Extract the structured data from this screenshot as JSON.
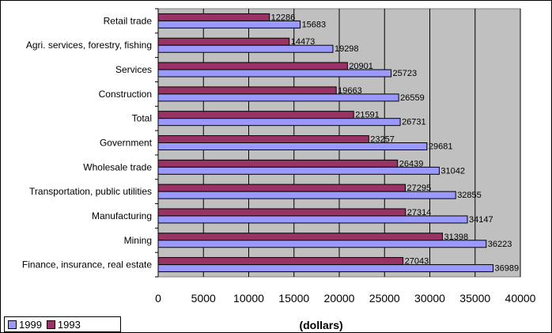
{
  "chart_data": {
    "type": "bar",
    "orientation": "horizontal",
    "categories": [
      "Retail trade",
      "Agri. services, forestry, fishing",
      "Services",
      "Construction",
      "Total",
      "Government",
      "Wholesale trade",
      "Transportation, public utilities",
      "Manufacturing",
      "Mining",
      "Finance, insurance, real estate"
    ],
    "series": [
      {
        "name": "1993",
        "color": "#993366",
        "values": [
          12286,
          14473,
          20901,
          19663,
          21591,
          23257,
          26439,
          27295,
          27314,
          31398,
          27043
        ]
      },
      {
        "name": "1999",
        "color": "#9999ff",
        "values": [
          15683,
          19298,
          25723,
          26559,
          26731,
          29681,
          31042,
          32855,
          34147,
          36223,
          36989
        ]
      }
    ],
    "xlabel": "(dollars)",
    "xlim": [
      0,
      40000
    ],
    "xticks": [
      0,
      5000,
      10000,
      15000,
      20000,
      25000,
      30000,
      35000,
      40000
    ],
    "grid": true,
    "plot_background": "#c0c0c0",
    "legend_placement": "bottom-left",
    "legend": [
      "1999",
      "1993"
    ]
  }
}
